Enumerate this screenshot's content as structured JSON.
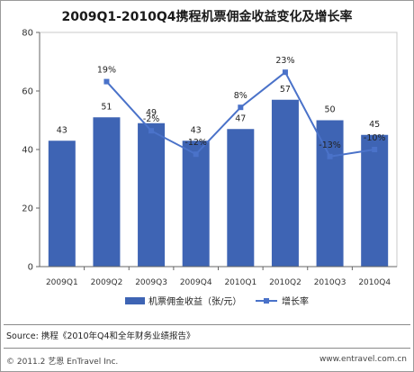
{
  "chart_data": {
    "type": "bar+line",
    "title": "2009Q1-2010Q4携程机票佣金收益变化及增长率",
    "categories": [
      "2009Q1",
      "2009Q2",
      "2009Q3",
      "2009Q4",
      "2010Q1",
      "2010Q2",
      "2010Q3",
      "2010Q4"
    ],
    "series": [
      {
        "name": "机票佣金收益（张/元）",
        "type": "bar",
        "values": [
          43,
          51,
          49,
          43,
          47,
          57,
          50,
          45
        ],
        "color": "#3E64B4"
      },
      {
        "name": "增长率",
        "type": "line",
        "values": [
          null,
          19,
          -2,
          -12,
          8,
          23,
          -13,
          -10
        ],
        "labels": [
          "",
          "19%",
          "-2%",
          "-12%",
          "8%",
          "23%",
          "-13%",
          "-10%"
        ],
        "color": "#4A72C9"
      }
    ],
    "y_ticks": [
      "0",
      "20",
      "40",
      "60",
      "80"
    ],
    "ylim": [
      0,
      80
    ],
    "grid": false,
    "legend_position": "bottom"
  },
  "footer": {
    "source": "Source: 携程《2010年Q4和全年财务业绩报告》",
    "copyright": "© 2011.2 艺恩 EnTravel Inc.",
    "website": "www.entravel.com.cn"
  }
}
